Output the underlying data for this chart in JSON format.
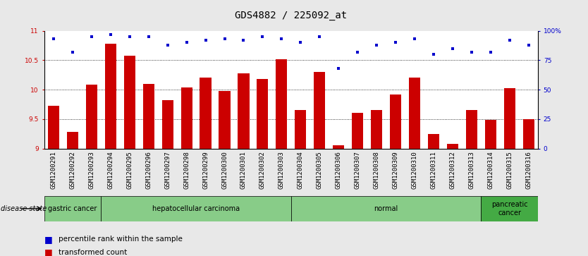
{
  "title": "GDS4882 / 225092_at",
  "samples": [
    "GSM1200291",
    "GSM1200292",
    "GSM1200293",
    "GSM1200294",
    "GSM1200295",
    "GSM1200296",
    "GSM1200297",
    "GSM1200298",
    "GSM1200299",
    "GSM1200300",
    "GSM1200301",
    "GSM1200302",
    "GSM1200303",
    "GSM1200304",
    "GSM1200305",
    "GSM1200306",
    "GSM1200307",
    "GSM1200308",
    "GSM1200309",
    "GSM1200310",
    "GSM1200311",
    "GSM1200312",
    "GSM1200313",
    "GSM1200314",
    "GSM1200315",
    "GSM1200316"
  ],
  "bar_values": [
    9.72,
    9.28,
    10.08,
    10.78,
    10.58,
    10.1,
    9.82,
    10.04,
    10.2,
    9.98,
    10.28,
    10.18,
    10.52,
    9.65,
    10.3,
    9.05,
    9.6,
    9.65,
    9.92,
    10.2,
    9.25,
    9.08,
    9.65,
    9.48,
    10.02,
    9.5
  ],
  "percentile_values": [
    93,
    82,
    95,
    97,
    95,
    95,
    88,
    90,
    92,
    93,
    92,
    95,
    93,
    90,
    95,
    68,
    82,
    88,
    90,
    93,
    80,
    85,
    82,
    82,
    92,
    88
  ],
  "ylim_left": [
    9,
    11
  ],
  "yticks_left": [
    9,
    9.5,
    10,
    10.5,
    11
  ],
  "ytick_labels_right": [
    "0",
    "25",
    "50",
    "75",
    "100%"
  ],
  "yticks_right": [
    0,
    25,
    50,
    75,
    100
  ],
  "bar_color": "#cc0000",
  "dot_color": "#0000cc",
  "bar_width": 0.6,
  "group_defs": [
    {
      "label": "gastric cancer",
      "start": 0,
      "end": 3,
      "color": "#88cc88"
    },
    {
      "label": "hepatocellular carcinoma",
      "start": 3,
      "end": 13,
      "color": "#88cc88"
    },
    {
      "label": "normal",
      "start": 13,
      "end": 23,
      "color": "#88cc88"
    },
    {
      "label": "pancreatic\ncancer",
      "start": 23,
      "end": 26,
      "color": "#44aa44"
    }
  ],
  "plot_bg_color": "#ffffff",
  "xtick_bg_color": "#d8d8d8",
  "fig_bg_color": "#e8e8e8",
  "legend_bar_label": "transformed count",
  "legend_dot_label": "percentile rank within the sample",
  "title_fontsize": 10,
  "tick_fontsize": 6.5,
  "group_fontsize": 7,
  "legend_fontsize": 7.5
}
